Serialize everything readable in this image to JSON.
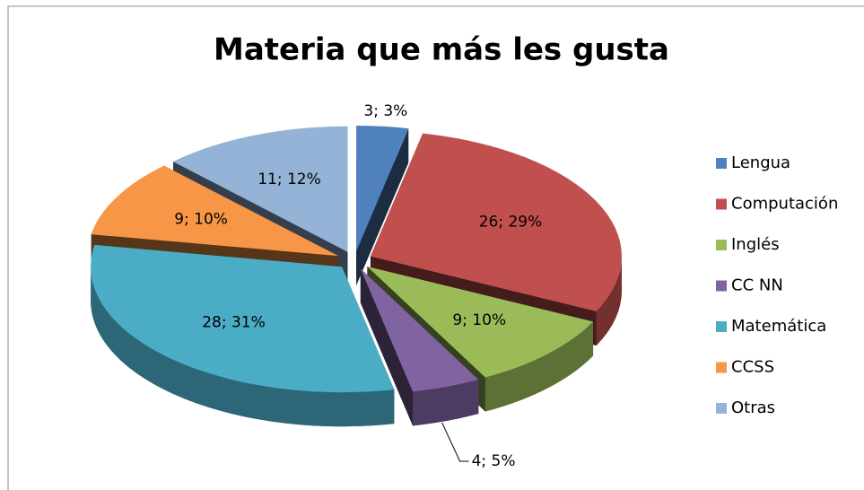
{
  "chart_data": {
    "type": "pie3d",
    "title": "Materia que más les gusta",
    "categories": [
      "Lengua",
      "Computación",
      "Inglés",
      "CC NN",
      "Matemática",
      "CCSS",
      "Otras"
    ],
    "values": [
      3,
      26,
      9,
      4,
      28,
      9,
      11
    ],
    "value_labels": [
      "3; 3%",
      "26; 29%",
      "9; 10%",
      "4; 5%",
      "28; 31%",
      "9; 10%",
      "11; 12%"
    ],
    "colors": [
      "#4f81bd",
      "#c0504d",
      "#9bbb59",
      "#8064a2",
      "#4bacc6",
      "#f79646",
      "#95b3d7"
    ],
    "legend": "right"
  }
}
